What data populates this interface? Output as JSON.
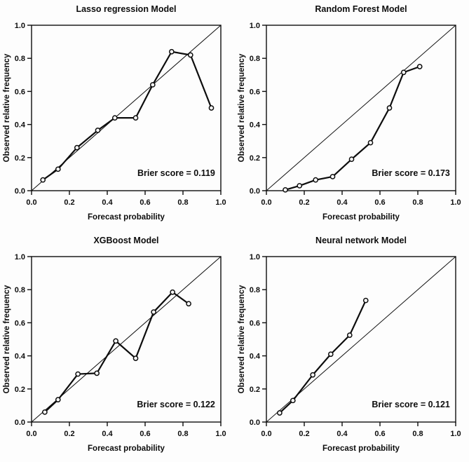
{
  "figure": {
    "description": "Calibration plots for four prediction models",
    "background_color": "#fdfdfd",
    "line_color": "#0d0d0d",
    "marker_style": "open-circle",
    "marker_fill": "#ffffff"
  },
  "chart_data": [
    {
      "type": "line",
      "title": "Lasso regression Model",
      "xlabel": "Forecast probability",
      "ylabel": "Observed relative frequency",
      "xlim": [
        0,
        1
      ],
      "ylim": [
        0,
        1
      ],
      "xtick_values": [
        0,
        0.2,
        0.4,
        0.6,
        0.8,
        1.0
      ],
      "xtick_labels": [
        "0.0",
        "0.2",
        "0.4",
        "0.6",
        "0.8",
        "1.0"
      ],
      "ytick_values": [
        0,
        0.2,
        0.4,
        0.6,
        0.8,
        1.0
      ],
      "ytick_labels": [
        "0.0",
        "0.2",
        "0.4",
        "0.6",
        "0.8",
        "1.0"
      ],
      "reference_line": "diagonal",
      "grid": false,
      "annotation": "Brier score = 0.119",
      "x": [
        0.06,
        0.14,
        0.24,
        0.35,
        0.44,
        0.55,
        0.64,
        0.74,
        0.84,
        0.95
      ],
      "y": [
        0.065,
        0.13,
        0.26,
        0.365,
        0.44,
        0.44,
        0.64,
        0.84,
        0.82,
        0.5
      ]
    },
    {
      "type": "line",
      "title": "Random Forest Model",
      "xlabel": "Forecast probability",
      "ylabel": "Observed relative frequency",
      "xlim": [
        0,
        1
      ],
      "ylim": [
        0,
        1
      ],
      "xtick_values": [
        0,
        0.2,
        0.4,
        0.6,
        0.8,
        1.0
      ],
      "xtick_labels": [
        "0.0",
        "0.2",
        "0.4",
        "0.6",
        "0.8",
        "1.0"
      ],
      "ytick_values": [
        0,
        0.2,
        0.4,
        0.6,
        0.8,
        1.0
      ],
      "ytick_labels": [
        "0.0",
        "0.2",
        "0.4",
        "0.6",
        "0.8",
        "1.0"
      ],
      "reference_line": "diagonal",
      "grid": false,
      "annotation": "Brier score = 0.173",
      "x": [
        0.1,
        0.175,
        0.26,
        0.35,
        0.45,
        0.55,
        0.65,
        0.725,
        0.81
      ],
      "y": [
        0.005,
        0.03,
        0.065,
        0.085,
        0.19,
        0.29,
        0.5,
        0.715,
        0.75
      ]
    },
    {
      "type": "line",
      "title": "XGBoost Model",
      "xlabel": "Forecast probability",
      "ylabel": "Observed relative frequency",
      "xlim": [
        0,
        1
      ],
      "ylim": [
        0,
        1
      ],
      "xtick_values": [
        0,
        0.2,
        0.4,
        0.6,
        0.8,
        1.0
      ],
      "xtick_labels": [
        "0.0",
        "0.2",
        "0.4",
        "0.6",
        "0.8",
        "1.0"
      ],
      "ytick_values": [
        0,
        0.2,
        0.4,
        0.6,
        0.8,
        1.0
      ],
      "ytick_labels": [
        "0.0",
        "0.2",
        "0.4",
        "0.6",
        "0.8",
        "1.0"
      ],
      "reference_line": "diagonal",
      "grid": false,
      "annotation": "Brier score = 0.122",
      "x": [
        0.07,
        0.14,
        0.245,
        0.345,
        0.445,
        0.55,
        0.645,
        0.745,
        0.83
      ],
      "y": [
        0.06,
        0.135,
        0.29,
        0.295,
        0.49,
        0.385,
        0.665,
        0.785,
        0.715
      ]
    },
    {
      "type": "line",
      "title": "Neural network Model",
      "xlabel": "Forecast probability",
      "ylabel": "Observed relative frequency",
      "xlim": [
        0,
        1
      ],
      "ylim": [
        0,
        1
      ],
      "xtick_values": [
        0,
        0.2,
        0.4,
        0.6,
        0.8,
        1.0
      ],
      "xtick_labels": [
        "0.0",
        "0.2",
        "0.4",
        "0.6",
        "0.8",
        "1.0"
      ],
      "ytick_values": [
        0,
        0.2,
        0.4,
        0.6,
        0.8,
        1.0
      ],
      "ytick_labels": [
        "0.0",
        "0.2",
        "0.4",
        "0.6",
        "0.8",
        "1.0"
      ],
      "reference_line": "diagonal",
      "grid": false,
      "annotation": "Brier score = 0.121",
      "x": [
        0.07,
        0.14,
        0.245,
        0.34,
        0.44,
        0.525
      ],
      "y": [
        0.055,
        0.13,
        0.285,
        0.41,
        0.525,
        0.735
      ]
    }
  ]
}
